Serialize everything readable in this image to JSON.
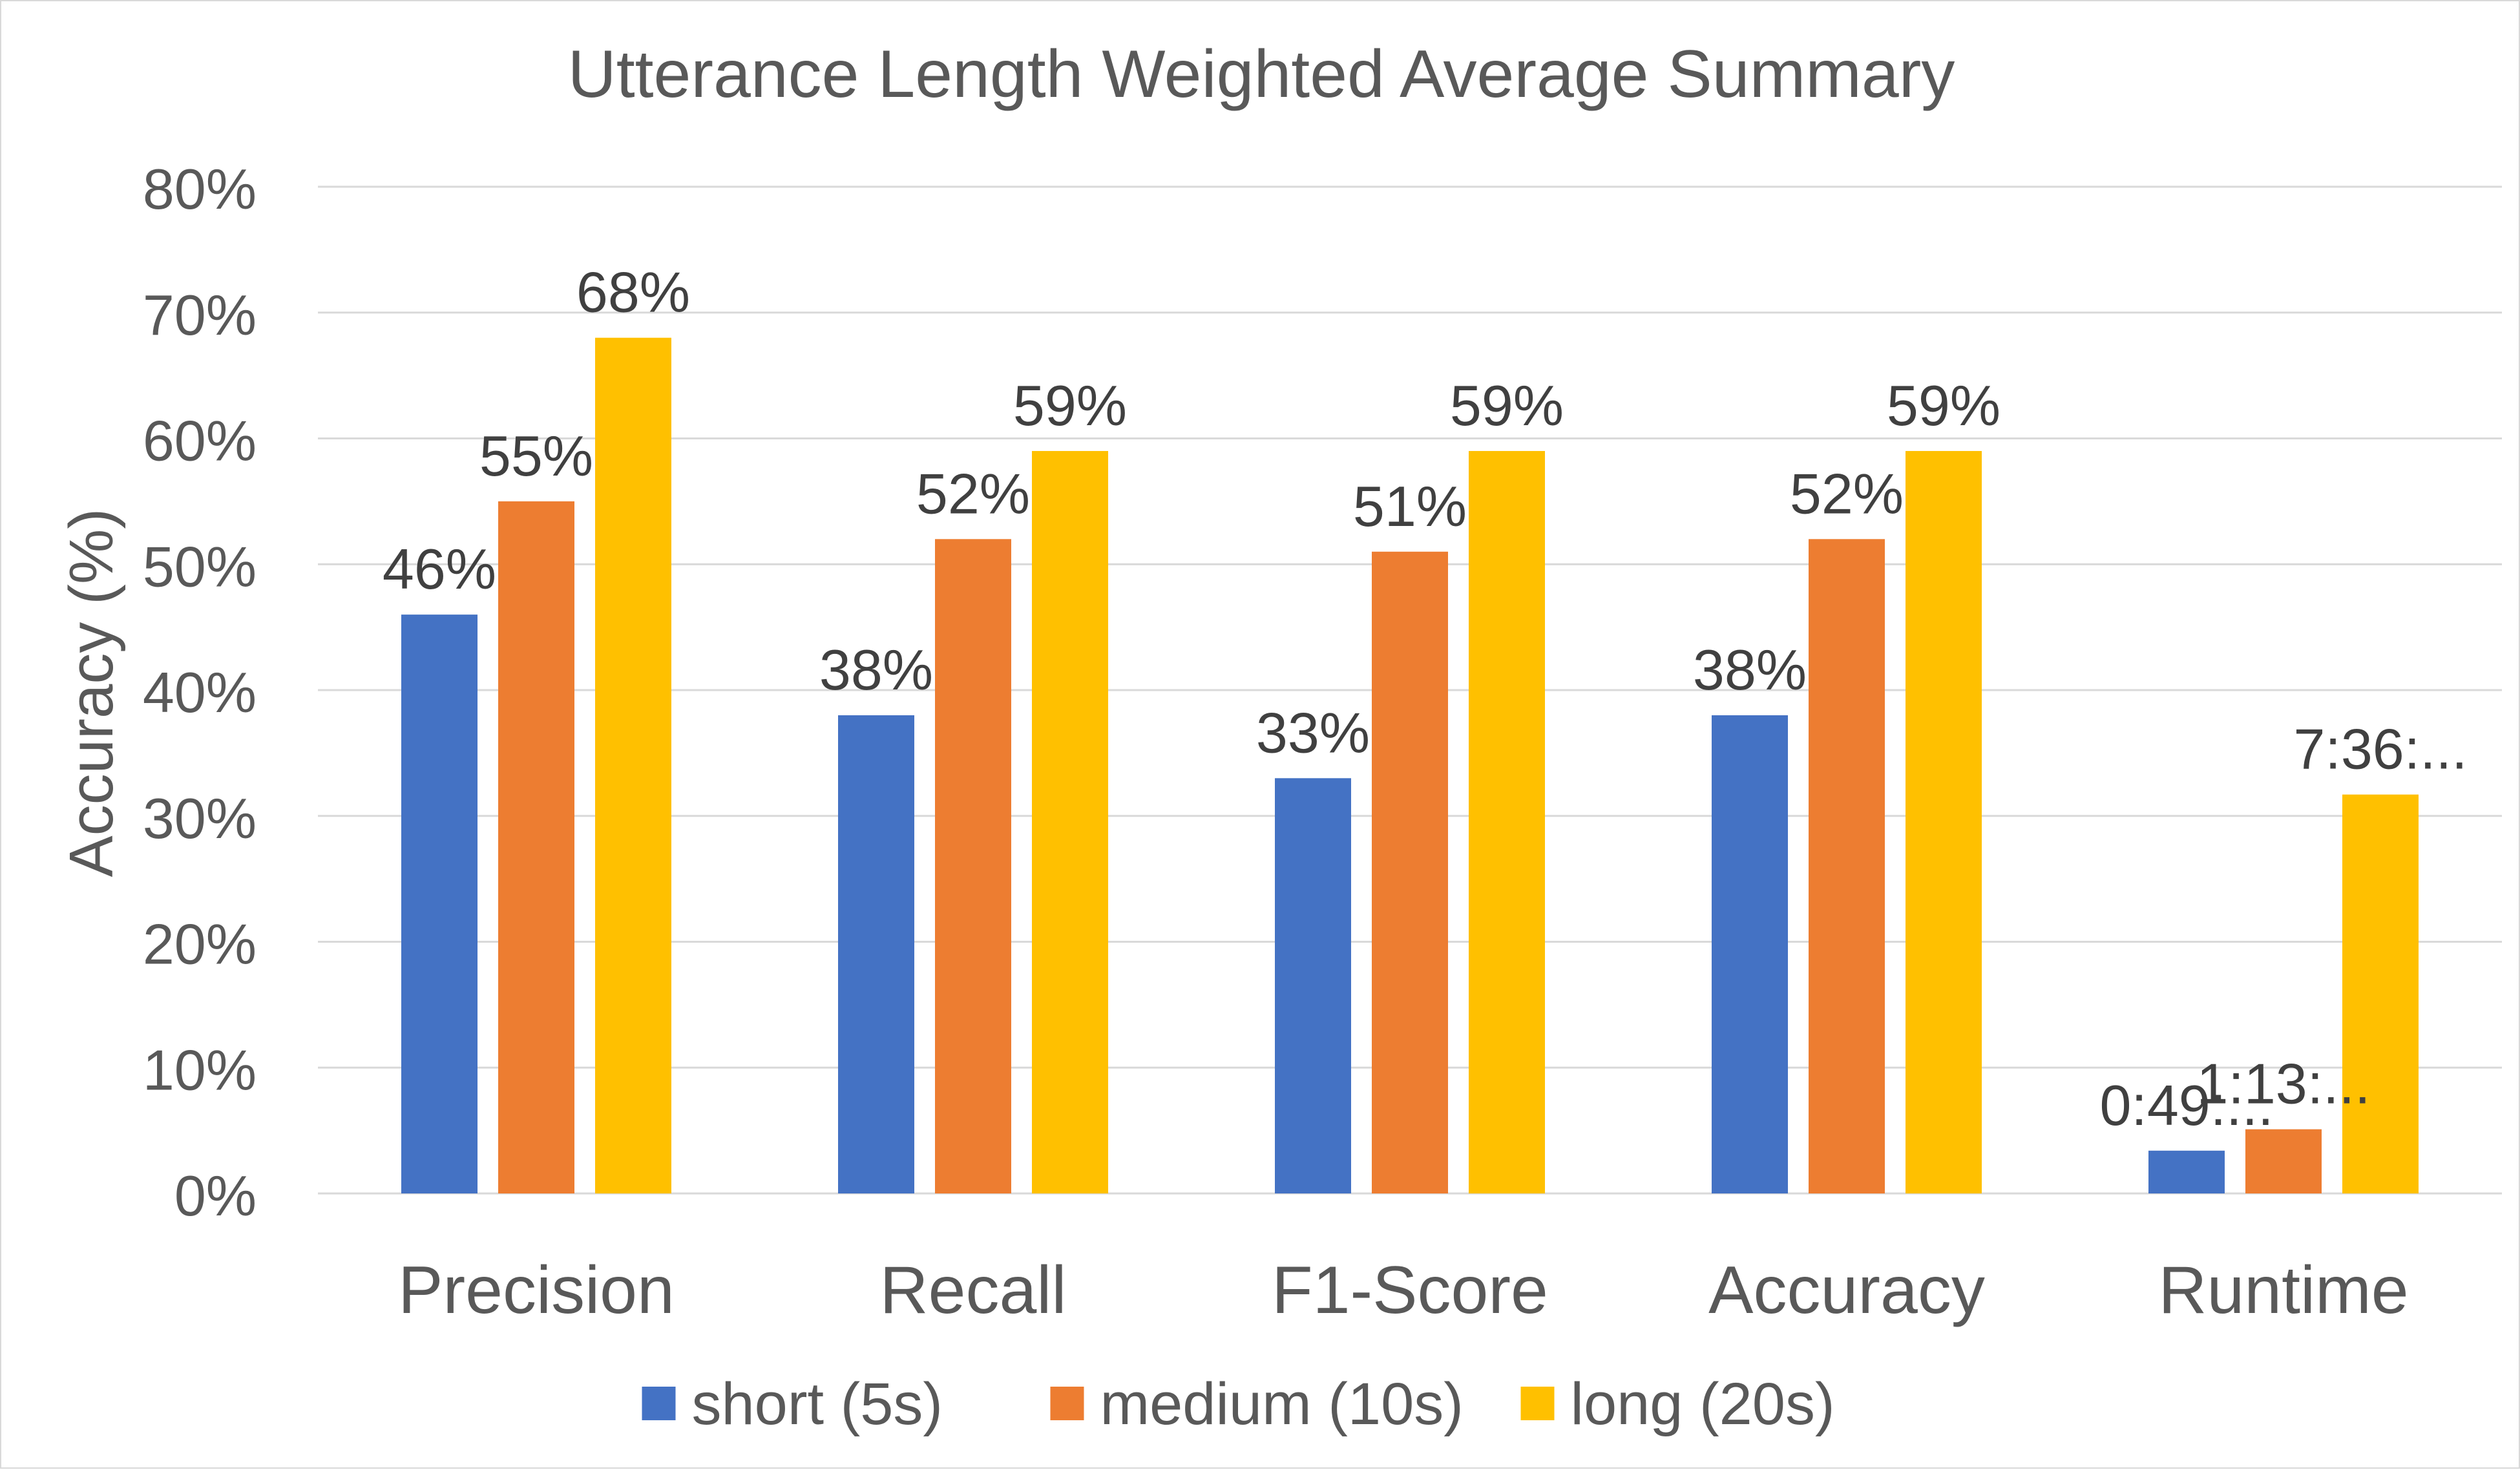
{
  "chart_data": {
    "type": "bar",
    "title": "Utterance Length Weighted Average Summary",
    "xlabel": "",
    "ylabel": "Accuracy (%)",
    "ylim": [
      0,
      80
    ],
    "yticks": [
      0,
      10,
      20,
      30,
      40,
      50,
      60,
      70,
      80
    ],
    "ytick_labels": [
      "0%",
      "10%",
      "20%",
      "30%",
      "40%",
      "50%",
      "60%",
      "70%",
      "80%"
    ],
    "grid": true,
    "legend_position": "bottom",
    "categories": [
      "Precision",
      "Recall",
      "F1-Score",
      "Accuracy",
      "Runtime"
    ],
    "series": [
      {
        "name": "short (5s)",
        "color": "#4472C4",
        "values": [
          46,
          38,
          33,
          38,
          3.4
        ],
        "labels": [
          "46%",
          "38%",
          "33%",
          "38%",
          "0:49:..."
        ]
      },
      {
        "name": "medium (10s)",
        "color": "#ED7D31",
        "values": [
          55,
          52,
          51,
          52,
          5.1
        ],
        "labels": [
          "55%",
          "52%",
          "51%",
          "52%",
          "1:13:..."
        ]
      },
      {
        "name": "long (20s)",
        "color": "#FFC000",
        "values": [
          68,
          59,
          59,
          59,
          31.7
        ],
        "labels": [
          "68%",
          "59%",
          "59%",
          "59%",
          "7:36:..."
        ]
      }
    ]
  }
}
